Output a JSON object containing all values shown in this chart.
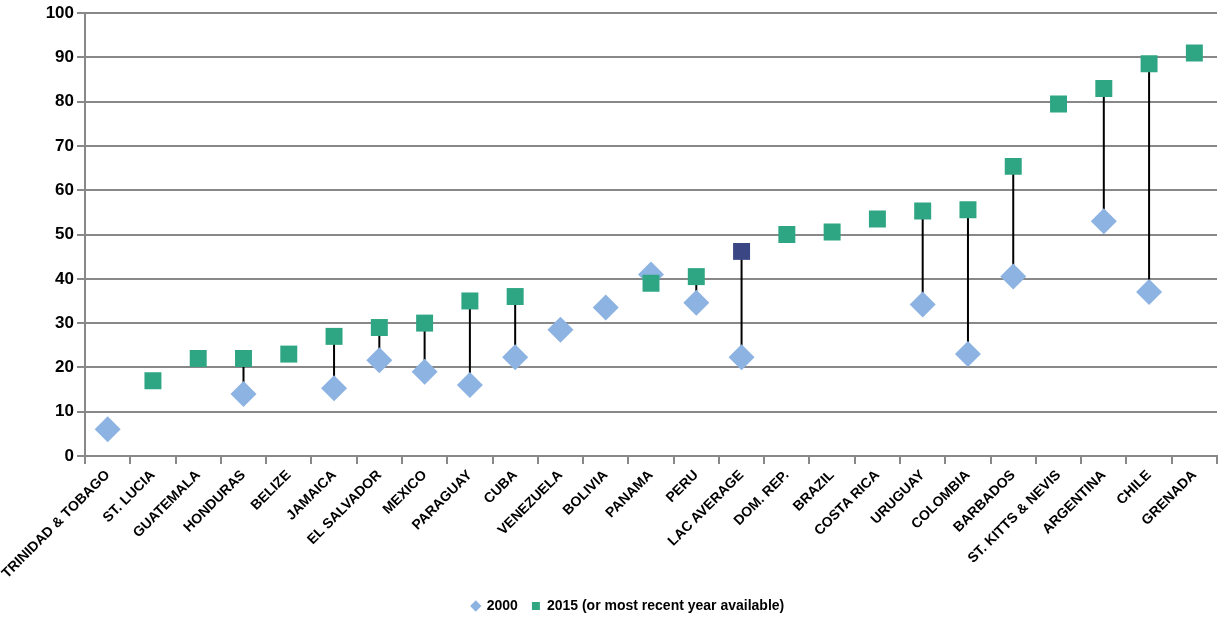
{
  "chart_data": {
    "type": "scatter",
    "categories": [
      "TRINIDAD & TOBAGO",
      "ST. LUCIA",
      "GUATEMALA",
      "HONDURAS",
      "BELIZE",
      "JAMAICA",
      "EL SALVADOR",
      "MEXICO",
      "PARAGUAY",
      "CUBA",
      "VENEZUELA",
      "BOLIVIA",
      "PANAMA",
      "PERU",
      "LAC AVERAGE",
      "DOM. REP.",
      "BRAZIL",
      "COSTA RICA",
      "URUGUAY",
      "COLOMBIA",
      "BARBADOS",
      "ST. KITTS & NEVIS",
      "ARGENTINA",
      "CHILE",
      "GRENADA"
    ],
    "series": [
      {
        "name": "2000",
        "color": "#8db3e2",
        "marker": "diamond",
        "values": [
          6,
          null,
          null,
          14,
          null,
          15.3,
          21.6,
          19,
          16,
          22.3,
          28.5,
          33.5,
          41,
          34.6,
          22.3,
          null,
          null,
          null,
          34.2,
          23,
          40.5,
          null,
          53,
          37,
          null
        ]
      },
      {
        "name": "2015 (or most recent year available)",
        "color": "#2fa683",
        "marker": "square",
        "colors": [
          "#2fa683",
          "#2fa683",
          "#2fa683",
          "#2fa683",
          "#2fa683",
          "#2fa683",
          "#2fa683",
          "#2fa683",
          "#2fa683",
          "#2fa683",
          "#2fa683",
          "#2fa683",
          "#2fa683",
          "#2fa683",
          "#3b4685",
          "#2fa683",
          "#2fa683",
          "#2fa683",
          "#2fa683",
          "#2fa683",
          "#2fa683",
          "#2fa683",
          "#2fa683",
          "#2fa683",
          "#2fa683"
        ],
        "values": [
          null,
          17,
          22,
          22,
          23,
          27,
          29,
          30,
          35,
          36,
          null,
          null,
          39,
          40.5,
          46.2,
          50,
          50.6,
          53.5,
          55.3,
          55.6,
          65.4,
          79.5,
          83,
          88.6,
          91
        ]
      }
    ],
    "ylim": [
      0,
      100
    ],
    "yticks": [
      0,
      10,
      20,
      30,
      40,
      50,
      60,
      70,
      80,
      90,
      100
    ],
    "grid": "y",
    "legend": "bottom"
  }
}
